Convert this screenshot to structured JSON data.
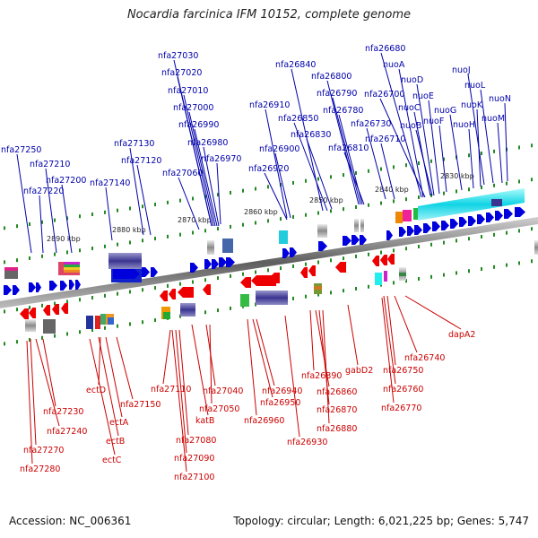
{
  "title": "Nocardia farcinica IFM 10152, complete genome",
  "footer": {
    "accession": "Accession: NC_006361",
    "summary": "Topology: circular; Length: 6,021,225 bp; Genes: 5,747"
  },
  "colors": {
    "forward": "#0000dd",
    "reverse": "#ee0000",
    "forward_label": "#0000aa",
    "reverse_label": "#cc0000",
    "backbone": "#777777",
    "tick": "#228822"
  },
  "scale_labels": [
    "2890 kbp",
    "2880 kbp",
    "2870 kbp",
    "2860 kbp",
    "2850 kbp",
    "2840 kbp",
    "2830 kbp"
  ],
  "forward_genes": [
    "nfa27250",
    "nfa27210",
    "nfa27220",
    "nfa27200",
    "nfa27140",
    "nfa27130",
    "nfa27120",
    "nfa27030",
    "nfa27020",
    "nfa27010",
    "nfa27000",
    "nfa26990",
    "nfa26980",
    "nfa26970",
    "nfa27060",
    "nfa26910",
    "nfa26900",
    "nfa26920",
    "nfa26840",
    "nfa26850",
    "nfa26830",
    "nfa26800",
    "nfa26790",
    "nfa26780",
    "nfa26810",
    "nfa26680",
    "nuoA",
    "nuoD",
    "nfa26700",
    "nuoE",
    "nuoC",
    "nuoB",
    "nfa26730",
    "nfa26710",
    "nuoG",
    "nuoF",
    "nuoJ",
    "nuoL",
    "nuoK",
    "nuoH",
    "nuoN",
    "nuoM"
  ],
  "reverse_genes": [
    "nfa27230",
    "nfa27240",
    "nfa27270",
    "nfa27280",
    "ectD",
    "ectA",
    "ectB",
    "ectC",
    "nfa27150",
    "nfa27110",
    "nfa27080",
    "nfa27090",
    "nfa27100",
    "katB",
    "nfa27040",
    "nfa27050",
    "nfa26940",
    "nfa26950",
    "nfa26960",
    "nfa26930",
    "nfa26890",
    "nfa26860",
    "nfa26870",
    "nfa26880",
    "gabD2",
    "nfa26740",
    "nfa26750",
    "nfa26760",
    "nfa26770",
    "dapA2"
  ]
}
